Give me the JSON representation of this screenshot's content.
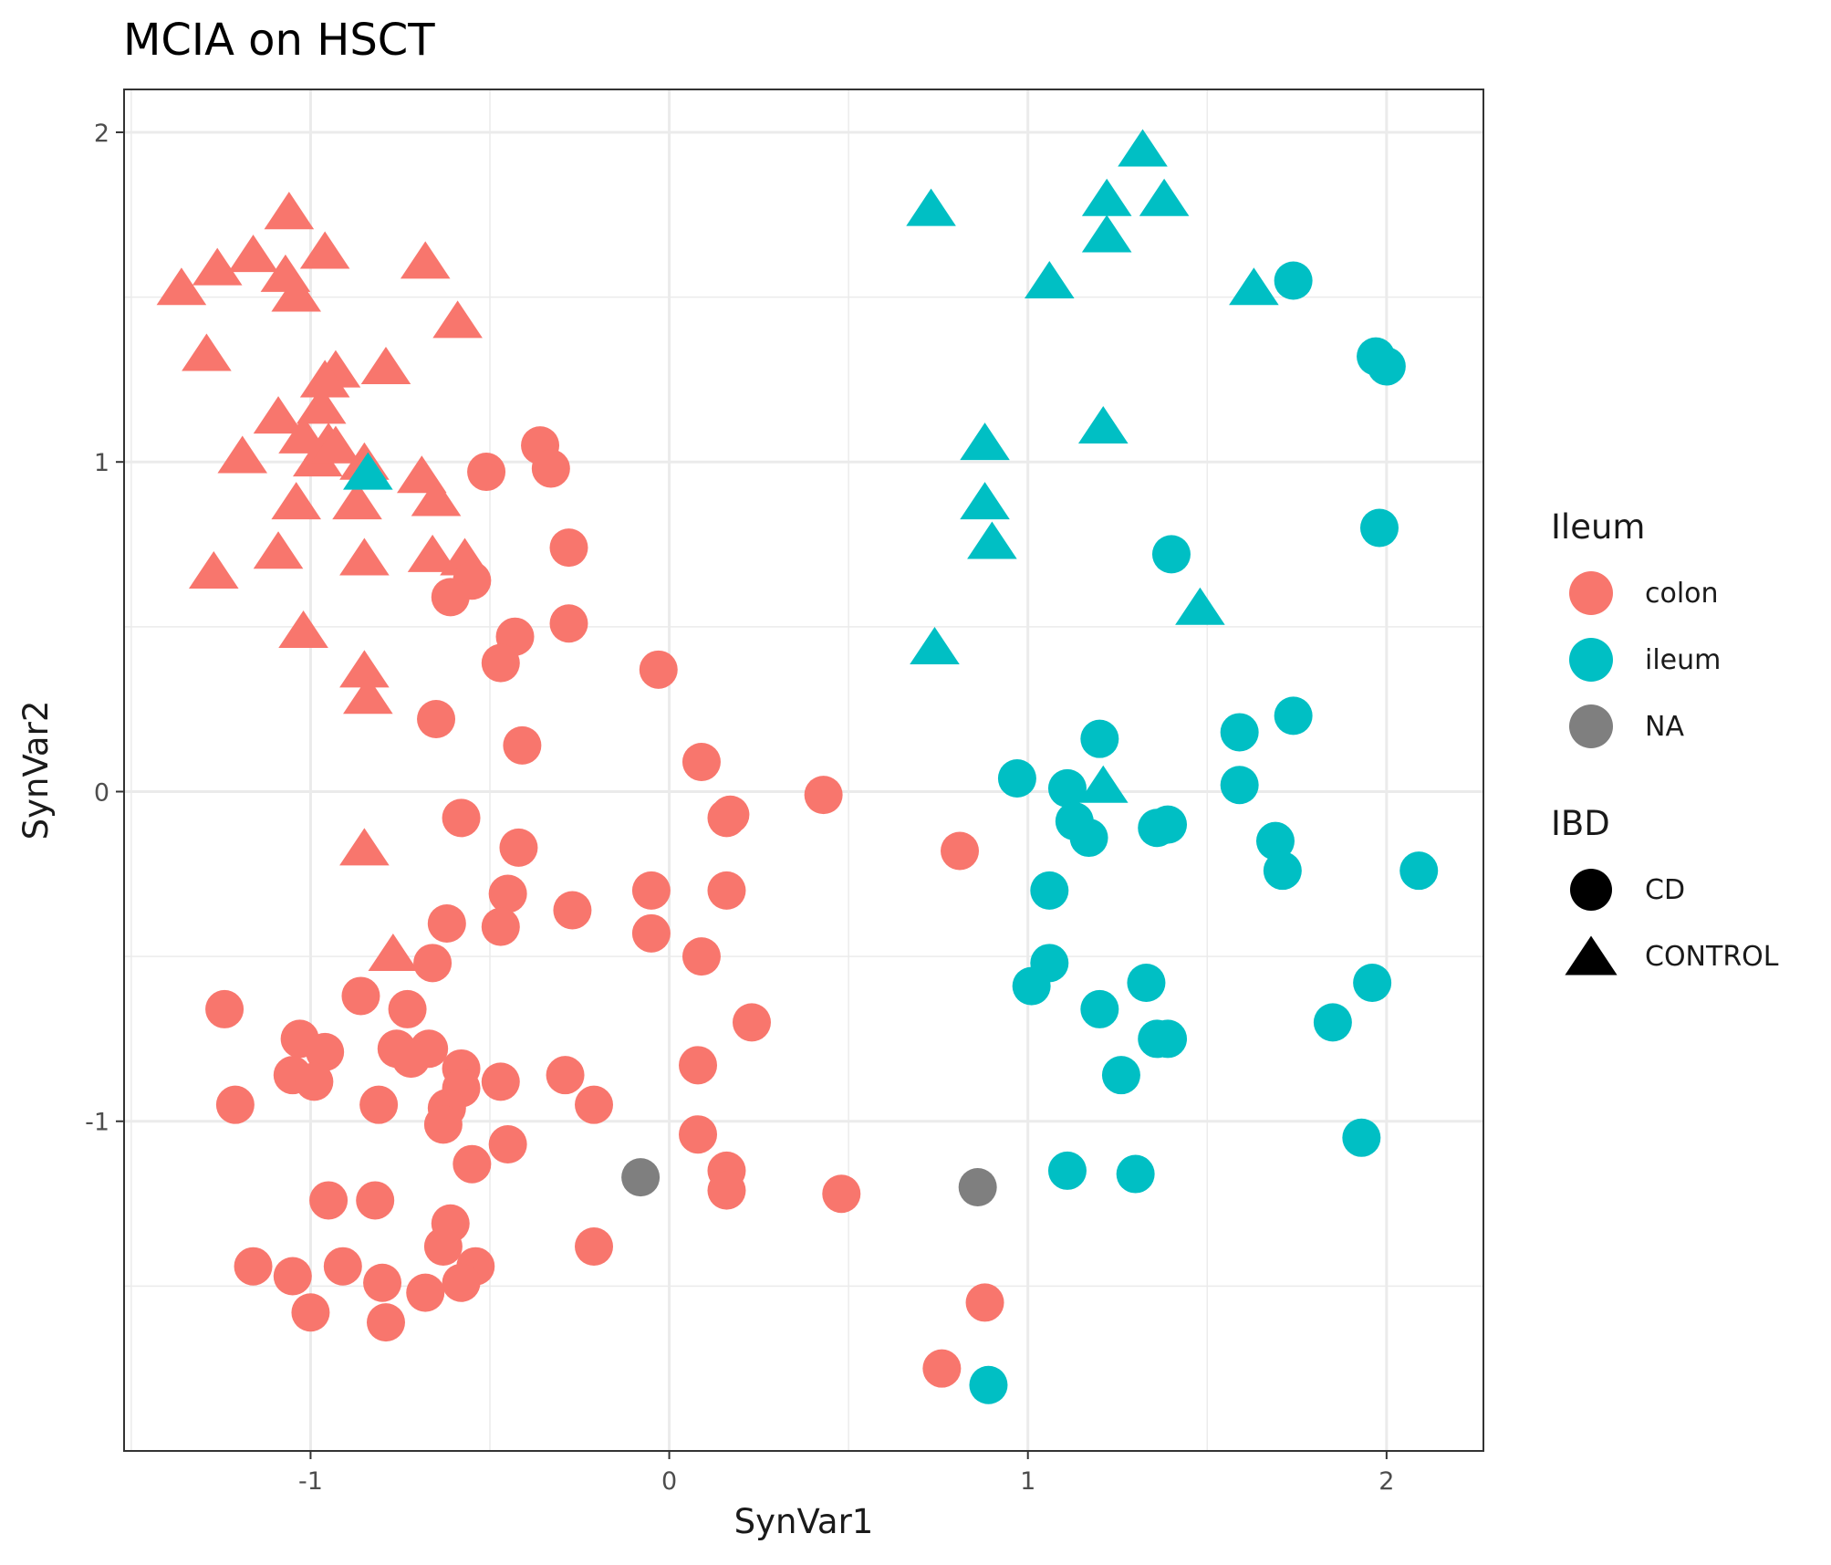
{
  "chart_data": {
    "type": "scatter",
    "title": "MCIA on HSCT",
    "xlabel": "SynVar1",
    "ylabel": "SynVar2",
    "xlim": [
      -1.52,
      2.27
    ],
    "ylim": [
      -2.0,
      2.13
    ],
    "x_ticks": [
      "-1",
      "0",
      "1",
      "2"
    ],
    "y_ticks": [
      "-1",
      "0",
      "1",
      "2"
    ],
    "grid": true,
    "legend_position": "right",
    "legends": [
      {
        "title": "Ileum",
        "kind": "color",
        "entries": [
          {
            "label": "colon",
            "color": "#F8766D"
          },
          {
            "label": "ileum",
            "color": "#00BFC4"
          },
          {
            "label": "NA",
            "color": "#7F7F7F"
          }
        ]
      },
      {
        "title": "IBD",
        "kind": "shape",
        "entries": [
          {
            "label": "CD",
            "shape": "circle"
          },
          {
            "label": "CONTROL",
            "shape": "triangle"
          }
        ]
      }
    ],
    "series": [
      {
        "name": "colon / CONTROL",
        "color": "#F8766D",
        "shape": "triangle",
        "points": [
          [
            -1.36,
            1.53
          ],
          [
            -1.26,
            1.59
          ],
          [
            -1.16,
            1.63
          ],
          [
            -1.07,
            1.57
          ],
          [
            -1.06,
            1.76
          ],
          [
            -1.04,
            1.51
          ],
          [
            -0.96,
            1.64
          ],
          [
            -0.68,
            1.61
          ],
          [
            -0.59,
            1.43
          ],
          [
            -1.29,
            1.33
          ],
          [
            -0.93,
            1.28
          ],
          [
            -0.96,
            1.25
          ],
          [
            -0.79,
            1.29
          ],
          [
            -1.09,
            1.14
          ],
          [
            -0.97,
            1.17
          ],
          [
            -1.02,
            1.08
          ],
          [
            -0.95,
            1.06
          ],
          [
            -0.98,
            1.01
          ],
          [
            -1.19,
            1.02
          ],
          [
            -0.69,
            0.96
          ],
          [
            -1.04,
            0.88
          ],
          [
            -0.87,
            0.88
          ],
          [
            -0.65,
            0.89
          ],
          [
            -1.09,
            0.73
          ],
          [
            -0.85,
            0.71
          ],
          [
            -0.66,
            0.72
          ],
          [
            -0.57,
            0.71
          ],
          [
            -1.27,
            0.67
          ],
          [
            -1.02,
            0.49
          ],
          [
            -0.85,
            0.37
          ],
          [
            -0.84,
            0.29
          ],
          [
            -0.85,
            -0.17
          ],
          [
            -0.77,
            -0.49
          ],
          [
            -0.85,
            1.0
          ],
          [
            -0.93,
            1.05
          ]
        ]
      },
      {
        "name": "colon / CD",
        "color": "#F8766D",
        "shape": "circle",
        "points": [
          [
            -0.36,
            1.05
          ],
          [
            -0.33,
            0.98
          ],
          [
            -0.51,
            0.97
          ],
          [
            -0.28,
            0.74
          ],
          [
            -0.55,
            0.64
          ],
          [
            -0.61,
            0.59
          ],
          [
            -0.43,
            0.47
          ],
          [
            -0.28,
            0.51
          ],
          [
            -0.47,
            0.39
          ],
          [
            -0.03,
            0.37
          ],
          [
            -0.65,
            0.22
          ],
          [
            -0.41,
            0.14
          ],
          [
            0.09,
            0.09
          ],
          [
            0.43,
            -0.01
          ],
          [
            0.17,
            -0.07
          ],
          [
            0.16,
            -0.08
          ],
          [
            -0.58,
            -0.08
          ],
          [
            -0.42,
            -0.17
          ],
          [
            0.81,
            -0.18
          ],
          [
            -0.45,
            -0.31
          ],
          [
            -0.05,
            -0.3
          ],
          [
            0.16,
            -0.3
          ],
          [
            -0.27,
            -0.36
          ],
          [
            -0.62,
            -0.4
          ],
          [
            -0.47,
            -0.41
          ],
          [
            -0.05,
            -0.43
          ],
          [
            0.09,
            -0.5
          ],
          [
            -0.66,
            -0.52
          ],
          [
            -0.86,
            -0.62
          ],
          [
            -1.24,
            -0.66
          ],
          [
            -0.73,
            -0.66
          ],
          [
            0.23,
            -0.7
          ],
          [
            -1.03,
            -0.75
          ],
          [
            -0.96,
            -0.79
          ],
          [
            -0.76,
            -0.78
          ],
          [
            -0.67,
            -0.78
          ],
          [
            -0.72,
            -0.81
          ],
          [
            -0.58,
            -0.84
          ],
          [
            -1.05,
            -0.86
          ],
          [
            -0.99,
            -0.88
          ],
          [
            -0.29,
            -0.86
          ],
          [
            0.08,
            -0.83
          ],
          [
            -0.47,
            -0.88
          ],
          [
            -0.58,
            -0.9
          ],
          [
            -1.21,
            -0.95
          ],
          [
            -0.81,
            -0.95
          ],
          [
            -0.62,
            -0.96
          ],
          [
            -0.21,
            -0.95
          ],
          [
            -0.63,
            -1.01
          ],
          [
            0.08,
            -1.04
          ],
          [
            -0.45,
            -1.07
          ],
          [
            -0.55,
            -1.13
          ],
          [
            0.16,
            -1.15
          ],
          [
            0.16,
            -1.21
          ],
          [
            0.48,
            -1.22
          ],
          [
            -0.95,
            -1.24
          ],
          [
            -0.82,
            -1.24
          ],
          [
            -0.61,
            -1.31
          ],
          [
            -0.21,
            -1.38
          ],
          [
            -0.63,
            -1.38
          ],
          [
            -1.16,
            -1.44
          ],
          [
            -0.91,
            -1.44
          ],
          [
            -0.54,
            -1.44
          ],
          [
            -1.05,
            -1.47
          ],
          [
            -0.8,
            -1.49
          ],
          [
            -0.58,
            -1.49
          ],
          [
            -0.68,
            -1.52
          ],
          [
            -1.0,
            -1.58
          ],
          [
            -0.79,
            -1.61
          ],
          [
            0.88,
            -1.55
          ],
          [
            0.76,
            -1.75
          ]
        ]
      },
      {
        "name": "ileum / CONTROL",
        "color": "#00BFC4",
        "shape": "triangle",
        "points": [
          [
            1.32,
            1.95
          ],
          [
            1.22,
            1.8
          ],
          [
            1.38,
            1.8
          ],
          [
            0.73,
            1.77
          ],
          [
            1.22,
            1.69
          ],
          [
            1.06,
            1.55
          ],
          [
            1.63,
            1.53
          ],
          [
            1.21,
            1.11
          ],
          [
            0.88,
            1.06
          ],
          [
            0.88,
            0.88
          ],
          [
            0.9,
            0.76
          ],
          [
            1.48,
            0.56
          ],
          [
            0.74,
            0.44
          ],
          [
            1.21,
            0.02
          ],
          [
            -0.84,
            0.97
          ]
        ]
      },
      {
        "name": "ileum / CD",
        "color": "#00BFC4",
        "shape": "circle",
        "points": [
          [
            1.74,
            1.55
          ],
          [
            1.97,
            1.32
          ],
          [
            2.0,
            1.29
          ],
          [
            1.98,
            0.8
          ],
          [
            1.4,
            0.72
          ],
          [
            1.74,
            0.23
          ],
          [
            1.2,
            0.16
          ],
          [
            1.59,
            0.18
          ],
          [
            0.97,
            0.04
          ],
          [
            1.59,
            0.02
          ],
          [
            1.11,
            0.01
          ],
          [
            1.13,
            -0.09
          ],
          [
            1.17,
            -0.14
          ],
          [
            1.36,
            -0.11
          ],
          [
            1.39,
            -0.1
          ],
          [
            1.69,
            -0.15
          ],
          [
            1.71,
            -0.24
          ],
          [
            2.09,
            -0.24
          ],
          [
            1.06,
            -0.3
          ],
          [
            1.06,
            -0.52
          ],
          [
            1.01,
            -0.59
          ],
          [
            1.33,
            -0.58
          ],
          [
            1.96,
            -0.58
          ],
          [
            1.2,
            -0.66
          ],
          [
            1.85,
            -0.7
          ],
          [
            1.36,
            -0.75
          ],
          [
            1.39,
            -0.75
          ],
          [
            1.26,
            -0.86
          ],
          [
            1.93,
            -1.05
          ],
          [
            1.11,
            -1.15
          ],
          [
            1.3,
            -1.16
          ],
          [
            0.89,
            -1.8
          ]
        ]
      },
      {
        "name": "NA / CD",
        "color": "#7F7F7F",
        "shape": "circle",
        "points": [
          [
            -0.08,
            -1.17
          ],
          [
            0.86,
            -1.2
          ]
        ]
      }
    ]
  }
}
